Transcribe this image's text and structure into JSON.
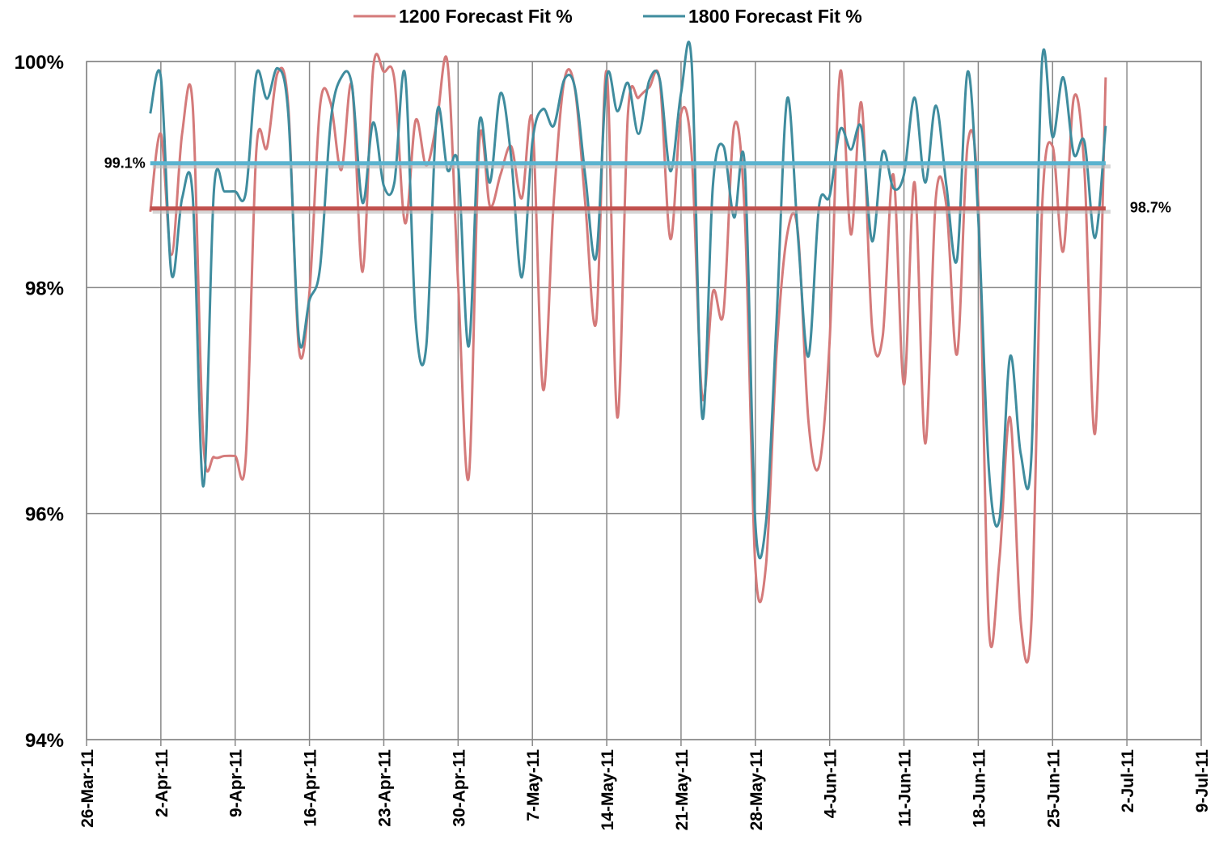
{
  "chart_data": {
    "type": "line",
    "x": [
      "2011-04-01",
      "2011-04-02",
      "2011-04-03",
      "2011-04-04",
      "2011-04-05",
      "2011-04-06",
      "2011-04-07",
      "2011-04-08",
      "2011-04-09",
      "2011-04-10",
      "2011-04-11",
      "2011-04-12",
      "2011-04-13",
      "2011-04-14",
      "2011-04-15",
      "2011-04-16",
      "2011-04-17",
      "2011-04-18",
      "2011-04-19",
      "2011-04-20",
      "2011-04-21",
      "2011-04-22",
      "2011-04-23",
      "2011-04-24",
      "2011-04-25",
      "2011-04-26",
      "2011-04-27",
      "2011-04-28",
      "2011-04-29",
      "2011-04-30",
      "2011-05-01",
      "2011-05-02",
      "2011-05-03",
      "2011-05-04",
      "2011-05-05",
      "2011-05-06",
      "2011-05-07",
      "2011-05-08",
      "2011-05-09",
      "2011-05-10",
      "2011-05-11",
      "2011-05-12",
      "2011-05-13",
      "2011-05-14",
      "2011-05-15",
      "2011-05-16",
      "2011-05-17",
      "2011-05-18",
      "2011-05-19",
      "2011-05-20",
      "2011-05-21",
      "2011-05-22",
      "2011-05-23",
      "2011-05-24",
      "2011-05-25",
      "2011-05-26",
      "2011-05-27",
      "2011-05-28",
      "2011-05-29",
      "2011-05-30",
      "2011-05-31",
      "2011-06-01",
      "2011-06-02",
      "2011-06-03",
      "2011-06-04",
      "2011-06-05",
      "2011-06-06",
      "2011-06-07",
      "2011-06-08",
      "2011-06-09",
      "2011-06-10",
      "2011-06-11",
      "2011-06-12",
      "2011-06-13",
      "2011-06-14",
      "2011-06-15",
      "2011-06-16",
      "2011-06-17",
      "2011-06-18",
      "2011-06-19",
      "2011-06-20",
      "2011-06-21",
      "2011-06-22",
      "2011-06-23",
      "2011-06-24",
      "2011-06-25",
      "2011-06-26",
      "2011-06-27",
      "2011-06-28",
      "2011-06-29",
      "2011-06-30"
    ],
    "series": [
      {
        "name": "1200 Forecast Fit %",
        "color": "#d47a7a",
        "values": [
          98.67,
          99.36,
          98.29,
          99.36,
          99.61,
          96.64,
          96.5,
          96.51,
          96.51,
          96.5,
          99.22,
          99.24,
          99.9,
          99.61,
          97.46,
          97.96,
          99.61,
          99.63,
          99.04,
          99.79,
          98.14,
          99.94,
          99.91,
          99.84,
          98.57,
          99.48,
          99.08,
          99.47,
          99.99,
          98.04,
          96.32,
          99.29,
          98.72,
          99.0,
          99.25,
          98.79,
          99.47,
          97.1,
          98.75,
          99.83,
          99.76,
          98.72,
          97.69,
          99.91,
          96.85,
          99.54,
          99.68,
          99.77,
          99.83,
          98.43,
          99.54,
          99.18,
          97.03,
          97.96,
          97.78,
          99.43,
          98.65,
          95.53,
          95.54,
          97.43,
          98.47,
          98.5,
          96.82,
          96.42,
          97.53,
          99.91,
          98.47,
          99.63,
          97.64,
          97.57,
          99.0,
          97.14,
          98.93,
          96.62,
          98.79,
          98.72,
          97.41,
          99.27,
          98.75,
          94.99,
          95.6,
          96.85,
          95.04,
          95.03,
          98.68,
          99.25,
          98.32,
          99.68,
          99.04,
          96.71,
          99.86
        ]
      },
      {
        "name": "1800 Forecast Fit %",
        "color": "#3f8c9e",
        "values": [
          99.54,
          99.86,
          98.12,
          98.79,
          98.81,
          96.24,
          98.86,
          98.85,
          98.85,
          98.84,
          99.89,
          99.67,
          99.94,
          99.54,
          97.55,
          97.89,
          98.18,
          99.47,
          99.86,
          99.79,
          98.75,
          99.46,
          98.9,
          98.93,
          99.89,
          97.71,
          97.48,
          99.54,
          99.04,
          99.08,
          97.48,
          99.46,
          98.93,
          99.72,
          99.15,
          98.09,
          99.29,
          99.58,
          99.43,
          99.84,
          99.77,
          98.97,
          98.27,
          99.86,
          99.56,
          99.81,
          99.36,
          99.83,
          99.84,
          99.03,
          99.72,
          99.99,
          96.85,
          98.9,
          99.25,
          98.62,
          99.08,
          95.92,
          95.92,
          97.71,
          99.67,
          98.47,
          97.39,
          98.72,
          98.81,
          99.4,
          99.22,
          99.41,
          98.41,
          99.2,
          98.88,
          99.0,
          99.68,
          98.93,
          99.61,
          98.9,
          98.25,
          99.91,
          98.61,
          96.39,
          95.95,
          97.39,
          96.53,
          96.5,
          99.99,
          99.33,
          99.86,
          99.18,
          99.29,
          98.44,
          99.43
        ]
      }
    ],
    "reference_lines": [
      {
        "value": 99.1,
        "label": "99.1%",
        "color": "#5ab3cf"
      },
      {
        "value": 98.7,
        "label": "98.7%",
        "color": "#c0504d"
      }
    ],
    "xlim": [
      "2011-03-26",
      "2011-07-09"
    ],
    "xticks": [
      {
        "value": "2011-03-26",
        "label": "26-Mar-11"
      },
      {
        "value": "2011-04-02",
        "label": "2-Apr-11"
      },
      {
        "value": "2011-04-09",
        "label": "9-Apr-11"
      },
      {
        "value": "2011-04-16",
        "label": "16-Apr-11"
      },
      {
        "value": "2011-04-23",
        "label": "23-Apr-11"
      },
      {
        "value": "2011-04-30",
        "label": "30-Apr-11"
      },
      {
        "value": "2011-05-07",
        "label": "7-May-11"
      },
      {
        "value": "2011-05-14",
        "label": "14-May-11"
      },
      {
        "value": "2011-05-21",
        "label": "21-May-11"
      },
      {
        "value": "2011-05-28",
        "label": "28-May-11"
      },
      {
        "value": "2011-06-04",
        "label": "4-Jun-11"
      },
      {
        "value": "2011-06-11",
        "label": "11-Jun-11"
      },
      {
        "value": "2011-06-18",
        "label": "18-Jun-11"
      },
      {
        "value": "2011-06-25",
        "label": "25-Jun-11"
      },
      {
        "value": "2011-07-02",
        "label": "2-Jul-11"
      },
      {
        "value": "2011-07-09",
        "label": "9-Jul-11"
      }
    ],
    "ylim": [
      94,
      100
    ],
    "yticks": [
      {
        "value": 94,
        "label": "94%"
      },
      {
        "value": 96,
        "label": "96%"
      },
      {
        "value": 98,
        "label": "98%"
      },
      {
        "value": 100,
        "label": "100%"
      }
    ],
    "grid": true,
    "legend": "top"
  }
}
